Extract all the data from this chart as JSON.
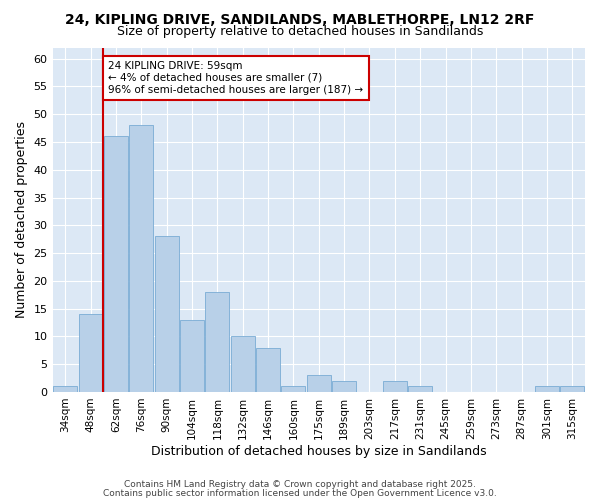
{
  "title_line1": "24, KIPLING DRIVE, SANDILANDS, MABLETHORPE, LN12 2RF",
  "title_line2": "Size of property relative to detached houses in Sandilands",
  "xlabel": "Distribution of detached houses by size in Sandilands",
  "ylabel": "Number of detached properties",
  "categories": [
    "34sqm",
    "48sqm",
    "62sqm",
    "76sqm",
    "90sqm",
    "104sqm",
    "118sqm",
    "132sqm",
    "146sqm",
    "160sqm",
    "175sqm",
    "189sqm",
    "203sqm",
    "217sqm",
    "231sqm",
    "245sqm",
    "259sqm",
    "273sqm",
    "287sqm",
    "301sqm",
    "315sqm"
  ],
  "values": [
    1,
    14,
    46,
    48,
    28,
    13,
    18,
    10,
    8,
    1,
    3,
    2,
    0,
    2,
    1,
    0,
    0,
    0,
    0,
    1,
    1
  ],
  "bar_color": "#b8d0e8",
  "bar_edge_color": "#7aacd4",
  "vline_x_index": 2,
  "vline_color": "#cc0000",
  "annotation_text": "24 KIPLING DRIVE: 59sqm\n← 4% of detached houses are smaller (7)\n96% of semi-detached houses are larger (187) →",
  "annotation_box_facecolor": "white",
  "annotation_box_edgecolor": "#cc0000",
  "ylim": [
    0,
    62
  ],
  "yticks": [
    0,
    5,
    10,
    15,
    20,
    25,
    30,
    35,
    40,
    45,
    50,
    55,
    60
  ],
  "plot_bg_color": "#dce8f5",
  "figure_bg_color": "#ffffff",
  "grid_color": "#ffffff",
  "footer_line1": "Contains HM Land Registry data © Crown copyright and database right 2025.",
  "footer_line2": "Contains public sector information licensed under the Open Government Licence v3.0."
}
